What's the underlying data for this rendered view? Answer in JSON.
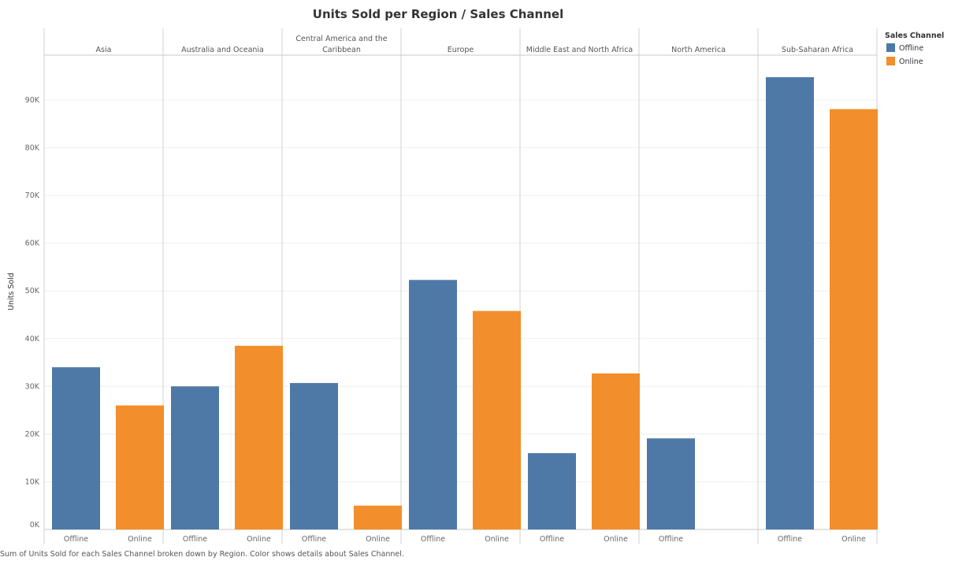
{
  "chart_data": {
    "type": "bar",
    "title": "Units Sold per Region / Sales Channel",
    "ylabel": "Units Sold",
    "xlabel": "",
    "ylim": [
      0,
      100000
    ],
    "yticks": [
      0,
      10000,
      20000,
      30000,
      40000,
      50000,
      60000,
      70000,
      80000,
      90000
    ],
    "ytick_labels": [
      "0K",
      "10K",
      "20K",
      "30K",
      "40K",
      "50K",
      "60K",
      "70K",
      "80K",
      "90K"
    ],
    "grid": true,
    "legend": {
      "title": "Sales Channel",
      "position": "top-right",
      "entries": [
        {
          "name": "Offline",
          "color": "#4e79a7"
        },
        {
          "name": "Online",
          "color": "#f28e2b"
        }
      ]
    },
    "panes": [
      {
        "region": "Asia",
        "bars": [
          {
            "channel": "Offline",
            "value": 34000
          },
          {
            "channel": "Online",
            "value": 26000
          }
        ]
      },
      {
        "region": "Australia and Oceania",
        "bars": [
          {
            "channel": "Offline",
            "value": 30000
          },
          {
            "channel": "Online",
            "value": 38500
          }
        ]
      },
      {
        "region": "Central America and the Caribbean",
        "region_lines": [
          "Central America and the",
          "Caribbean"
        ],
        "bars": [
          {
            "channel": "Offline",
            "value": 30700
          },
          {
            "channel": "Online",
            "value": 5000
          }
        ]
      },
      {
        "region": "Europe",
        "bars": [
          {
            "channel": "Offline",
            "value": 52300
          },
          {
            "channel": "Online",
            "value": 45800
          }
        ]
      },
      {
        "region": "Middle East and North Africa",
        "bars": [
          {
            "channel": "Offline",
            "value": 16000
          },
          {
            "channel": "Online",
            "value": 32700
          }
        ]
      },
      {
        "region": "North America",
        "bars": [
          {
            "channel": "Offline",
            "value": 19100
          }
        ]
      },
      {
        "region": "Sub-Saharan Africa",
        "bars": [
          {
            "channel": "Offline",
            "value": 94800
          },
          {
            "channel": "Online",
            "value": 88100
          }
        ]
      }
    ],
    "footer": "Sum of Units Sold for each Sales Channel broken down by Region.  Color shows details about Sales Channel."
  }
}
